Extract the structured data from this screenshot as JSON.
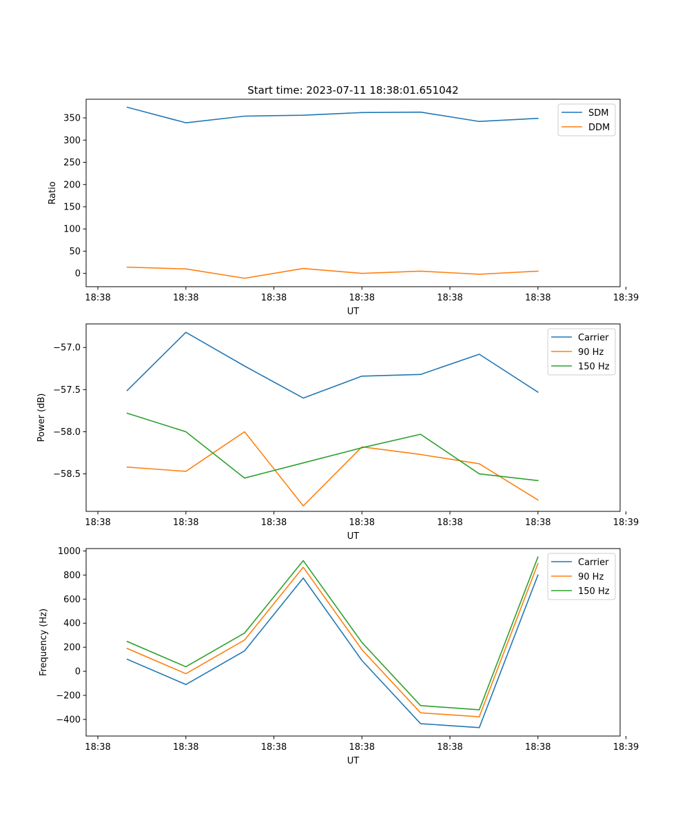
{
  "chart_data": [
    {
      "type": "line",
      "title": "Start time: 2023-07-11 18:38:01.651042",
      "xlabel": "UT",
      "ylabel": "Ratio",
      "x": [
        1,
        2,
        3,
        4,
        5,
        6,
        7,
        8
      ],
      "xlim": [
        0.3,
        9.4
      ],
      "x_ticks": [
        0.5,
        2,
        3.5,
        5,
        6.5,
        8,
        9.5
      ],
      "x_tick_labels": [
        "18:38",
        "18:38",
        "18:38",
        "18:38",
        "18:38",
        "18:38",
        "18:39"
      ],
      "ylim": [
        -30,
        392
      ],
      "y_ticks": [
        0,
        50,
        100,
        150,
        200,
        250,
        300,
        350
      ],
      "y_tick_labels": [
        "0",
        "50",
        "100",
        "150",
        "200",
        "250",
        "300",
        "350"
      ],
      "legend_position": "top-right",
      "series": [
        {
          "name": "SDM",
          "color": "#1f77b4",
          "values": [
            374,
            339,
            354,
            356,
            362,
            363,
            342,
            349
          ]
        },
        {
          "name": "DDM",
          "color": "#ff7f0e",
          "values": [
            14,
            10,
            -11,
            11,
            0,
            5,
            -2,
            5
          ]
        }
      ]
    },
    {
      "type": "line",
      "title": "",
      "xlabel": "UT",
      "ylabel": "Power (dB)",
      "x": [
        1,
        2,
        3,
        4,
        5,
        6,
        7,
        8
      ],
      "xlim": [
        0.3,
        9.4
      ],
      "x_ticks": [
        0.5,
        2,
        3.5,
        5,
        6.5,
        8,
        9.5
      ],
      "x_tick_labels": [
        "18:38",
        "18:38",
        "18:38",
        "18:38",
        "18:38",
        "18:38",
        "18:39"
      ],
      "ylim": [
        -58.945,
        -56.72
      ],
      "y_ticks": [
        -58.5,
        -58.0,
        -57.5,
        -57.0
      ],
      "y_tick_labels": [
        "−58.5",
        "−58.0",
        "−57.5",
        "−57.0"
      ],
      "legend_position": "top-right",
      "series": [
        {
          "name": "Carrier",
          "color": "#1f77b4",
          "values": [
            -57.51,
            -56.82,
            -57.22,
            -57.6,
            -57.34,
            -57.32,
            -57.08,
            -57.53
          ]
        },
        {
          "name": "90 Hz",
          "color": "#ff7f0e",
          "values": [
            -58.42,
            -58.47,
            -58.0,
            -58.88,
            -58.18,
            -58.27,
            -58.38,
            -58.81
          ]
        },
        {
          "name": "150 Hz",
          "color": "#2ca02c",
          "values": [
            -57.78,
            -58.0,
            -58.55,
            -58.37,
            -58.19,
            -58.03,
            -58.5,
            -58.58
          ]
        }
      ]
    },
    {
      "type": "line",
      "title": "",
      "xlabel": "UT",
      "ylabel": "Frequency (Hz)",
      "x": [
        1,
        2,
        3,
        4,
        5,
        6,
        7,
        8
      ],
      "xlim": [
        0.3,
        9.4
      ],
      "x_ticks": [
        0.5,
        2,
        3.5,
        5,
        6.5,
        8,
        9.5
      ],
      "x_tick_labels": [
        "18:38",
        "18:38",
        "18:38",
        "18:38",
        "18:38",
        "18:38",
        "18:39"
      ],
      "ylim": [
        -538,
        1020
      ],
      "y_ticks": [
        -400,
        -200,
        0,
        200,
        400,
        600,
        800,
        1000
      ],
      "y_tick_labels": [
        "−400",
        "−200",
        "0",
        "200",
        "400",
        "600",
        "800",
        "1000"
      ],
      "legend_position": "top-right",
      "series": [
        {
          "name": "Carrier",
          "color": "#1f77b4",
          "values": [
            100,
            -110,
            170,
            775,
            90,
            -435,
            -468,
            800
          ]
        },
        {
          "name": "90 Hz",
          "color": "#ff7f0e",
          "values": [
            190,
            -20,
            260,
            865,
            180,
            -345,
            -378,
            895
          ]
        },
        {
          "name": "150 Hz",
          "color": "#2ca02c",
          "values": [
            248,
            38,
            318,
            920,
            240,
            -285,
            -320,
            950
          ]
        }
      ]
    }
  ]
}
